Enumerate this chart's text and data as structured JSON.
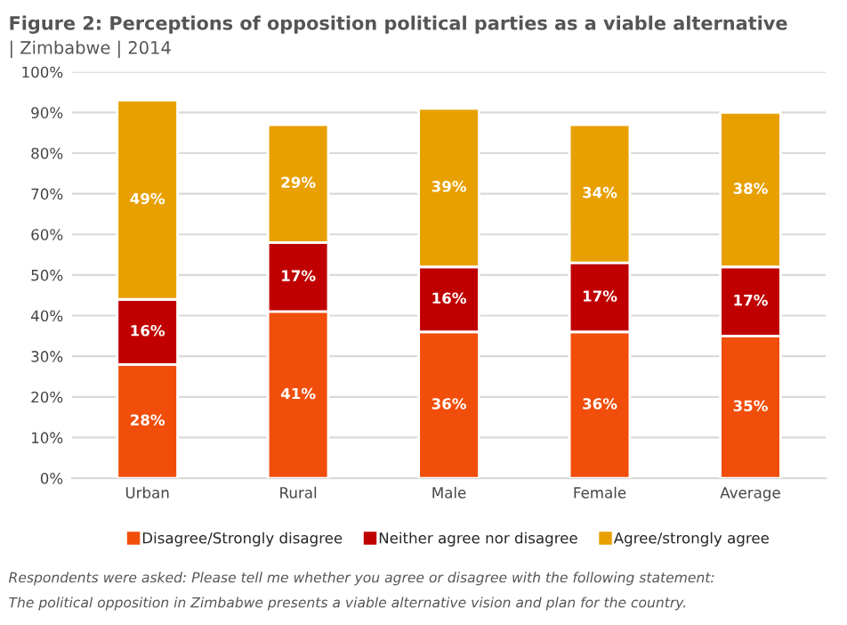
{
  "chart_data": {
    "type": "bar",
    "stacked": true,
    "title": "Figure 2: Perceptions of opposition political parties as a viable alternative",
    "subtitle": "| Zimbabwe | 2014",
    "categories": [
      "Urban",
      "Rural",
      "Male",
      "Female",
      "Average"
    ],
    "series": [
      {
        "name": "Disagree/Strongly disagree",
        "color": "#f04e0a",
        "values": [
          28,
          41,
          36,
          36,
          35
        ],
        "value_labels": [
          "28%",
          "41%",
          "36%",
          "36%",
          "35%"
        ]
      },
      {
        "name": "Neither agree nor disagree",
        "color": "#c00000",
        "values": [
          16,
          17,
          16,
          17,
          17
        ],
        "value_labels": [
          "16%",
          "17%",
          "16%",
          "17%",
          "17%"
        ]
      },
      {
        "name": "Agree/strongly agree",
        "color": "#e8a000",
        "values": [
          49,
          29,
          39,
          34,
          38
        ],
        "value_labels": [
          "49%",
          "29%",
          "39%",
          "34%",
          "38%"
        ]
      }
    ],
    "ylim": [
      0,
      100
    ],
    "yticks": [
      {
        "value": 0,
        "label": "0%"
      },
      {
        "value": 10,
        "label": "10%"
      },
      {
        "value": 20,
        "label": "20%"
      },
      {
        "value": 30,
        "label": "30%"
      },
      {
        "value": 40,
        "label": "40%"
      },
      {
        "value": 50,
        "label": "50%"
      },
      {
        "value": 60,
        "label": "60%"
      },
      {
        "value": 70,
        "label": "70%"
      },
      {
        "value": 80,
        "label": "80%"
      },
      {
        "value": 90,
        "label": "90%"
      },
      {
        "value": 100,
        "label": "100%"
      }
    ],
    "grid": "y",
    "legend": "bottom",
    "annotations": [
      "Respondents were asked: Please tell me whether you agree or disagree with the following statement:",
      "The political opposition in Zimbabwe presents a viable alternative vision and plan for the country."
    ]
  }
}
